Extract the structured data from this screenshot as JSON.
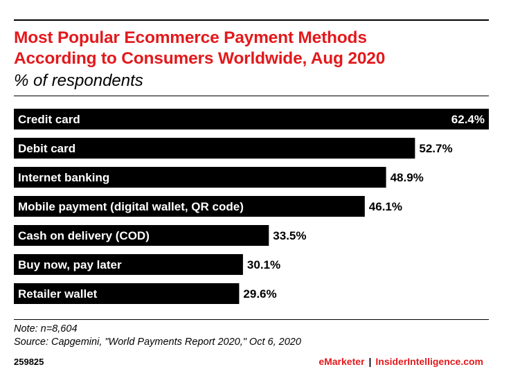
{
  "header": {
    "title_line1": "Most Popular Ecommerce Payment Methods",
    "title_line2": "According to Consumers Worldwide, Aug 2020",
    "subtitle": "% of respondents"
  },
  "chart_data": {
    "type": "bar",
    "orientation": "horizontal",
    "categories": [
      "Credit card",
      "Debit card",
      "Internet banking",
      "Mobile payment (digital wallet, QR code)",
      "Cash on delivery (COD)",
      "Buy now, pay later",
      "Retailer wallet"
    ],
    "values": [
      62.4,
      52.7,
      48.9,
      46.1,
      33.5,
      30.1,
      29.6
    ],
    "value_labels": [
      "62.4%",
      "52.7%",
      "48.9%",
      "46.1%",
      "33.5%",
      "30.1%",
      "29.6%"
    ],
    "unit": "%",
    "bar_color": "#000000",
    "label_color_inside": "#ffffff",
    "grid": false,
    "legend": "none"
  },
  "footer": {
    "note": "Note: n=8,604",
    "source": "Source: Capgemini, \"World Payments Report 2020,\" Oct 6, 2020",
    "chart_id": "259825",
    "brand_left": "eMarketer",
    "brand_sep": "|",
    "brand_right": "InsiderIntelligence.com"
  },
  "colors": {
    "accent": "#e3191c",
    "text": "#000000",
    "background": "#ffffff"
  }
}
